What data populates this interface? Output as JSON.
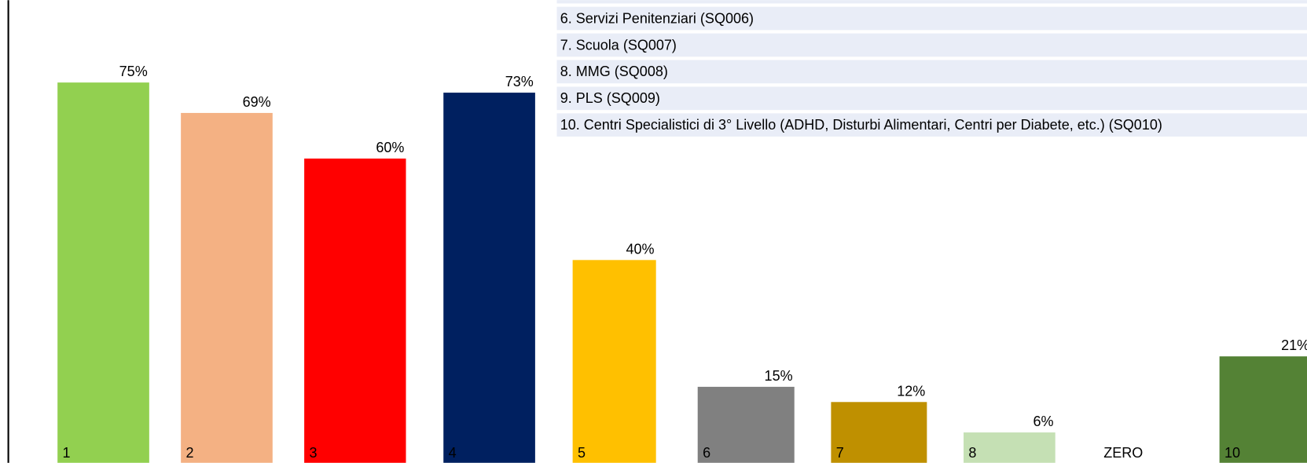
{
  "chart_data": {
    "type": "bar",
    "categories": [
      "1",
      "2",
      "3",
      "4",
      "5",
      "6",
      "7",
      "8",
      "ZERO",
      "10"
    ],
    "values": [
      75,
      69,
      60,
      73,
      40,
      15,
      12,
      6,
      0,
      21
    ],
    "value_labels": [
      "75%",
      "69%",
      "60%",
      "73%",
      "40%",
      "15%",
      "12%",
      "6%",
      null,
      "21%"
    ],
    "colors": [
      "#92d050",
      "#f4b183",
      "#ff0000",
      "#002060",
      "#ffc000",
      "#808080",
      "#bf9000",
      "#c5e0b4",
      "#ffffff",
      "#548235"
    ],
    "ylim": [
      0,
      75
    ],
    "legend": [
      "6. Servizi Penitenziari (SQ006)",
      "7. Scuola (SQ007)",
      "8. MMG (SQ008)",
      "9. PLS (SQ009)",
      "10. Centri Specialistici di 3° Livello (ADHD, Disturbi Alimentari, Centri per Diabete, etc.) (SQ010)"
    ]
  }
}
